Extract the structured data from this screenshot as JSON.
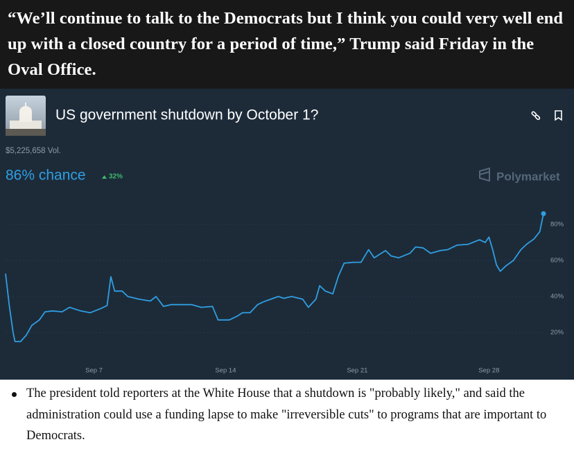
{
  "quote": "“We’ll continue to talk to the Democrats but I think you could very well end up with a closed country for a period of time,” Trump said Friday in the Oval Office.",
  "embed": {
    "volume": "$5,225,658 Vol.",
    "chance": "86% chance",
    "change": "32%",
    "brand": "Polymarket"
  },
  "chart_data": {
    "type": "line",
    "title": "US government shutdown by October 1?",
    "color": "#2f9fe2",
    "x": [
      2.3,
      2.5,
      2.7,
      2.8,
      3.1,
      3.4,
      3.7,
      4.1,
      4.4,
      4.8,
      5.3,
      5.7,
      6.3,
      6.8,
      7.4,
      7.7,
      7.9,
      8.1,
      8.5,
      8.8,
      9.4,
      10.0,
      10.3,
      10.7,
      11.1,
      11.6,
      12.2,
      12.7,
      13.3,
      13.6,
      14.2,
      14.6,
      14.9,
      15.3,
      15.7,
      16.0,
      16.4,
      16.8,
      17.1,
      17.5,
      18.1,
      18.4,
      18.8,
      19.0,
      19.3,
      19.7,
      20.0,
      20.3,
      20.8,
      21.2,
      21.6,
      21.9,
      22.5,
      22.8,
      23.2,
      23.8,
      24.1,
      24.5,
      24.9,
      25.4,
      25.8,
      26.3,
      26.9,
      27.5,
      27.8,
      28.0,
      28.2,
      28.4,
      28.6,
      28.9,
      29.3,
      29.7,
      30.0,
      30.4,
      30.7,
      30.9
    ],
    "values": [
      52.7,
      35,
      20,
      15,
      15,
      18.5,
      24,
      27,
      31.5,
      32,
      31.5,
      34,
      32,
      31,
      33.5,
      35,
      51,
      43,
      43,
      40,
      38.5,
      37.5,
      40,
      34.5,
      35.5,
      35.5,
      35.5,
      34,
      34.5,
      27,
      27,
      29,
      31,
      31,
      35.5,
      37,
      38.5,
      40,
      39,
      40,
      38.5,
      34,
      38.5,
      46,
      43,
      41.5,
      51.5,
      58.5,
      59,
      59,
      66,
      61.5,
      65.5,
      62.5,
      61.5,
      64,
      67.5,
      67,
      64,
      65.5,
      66,
      68.5,
      69,
      71.5,
      70,
      73,
      66,
      57.5,
      54,
      57,
      60,
      66,
      69,
      72,
      76,
      86
    ],
    "xlim": [
      2.3,
      30.9
    ],
    "xticks": [
      {
        "value": 7,
        "label": "Sep 7"
      },
      {
        "value": 14,
        "label": "Sep 14"
      },
      {
        "value": 21,
        "label": "Sep 21"
      },
      {
        "value": 28,
        "label": "Sep 28"
      }
    ],
    "ylim": [
      0,
      100
    ],
    "yticks": [
      {
        "value": 20,
        "label": "20%"
      },
      {
        "value": 40,
        "label": "40%"
      },
      {
        "value": 60,
        "label": "60%"
      },
      {
        "value": 80,
        "label": "80%"
      }
    ]
  },
  "bullet": "The president told reporters at the White House that a shutdown is \"probably likely,\" and said the administration could use a funding lapse to make \"irreversible cuts\" to programs that are important to Democrats."
}
